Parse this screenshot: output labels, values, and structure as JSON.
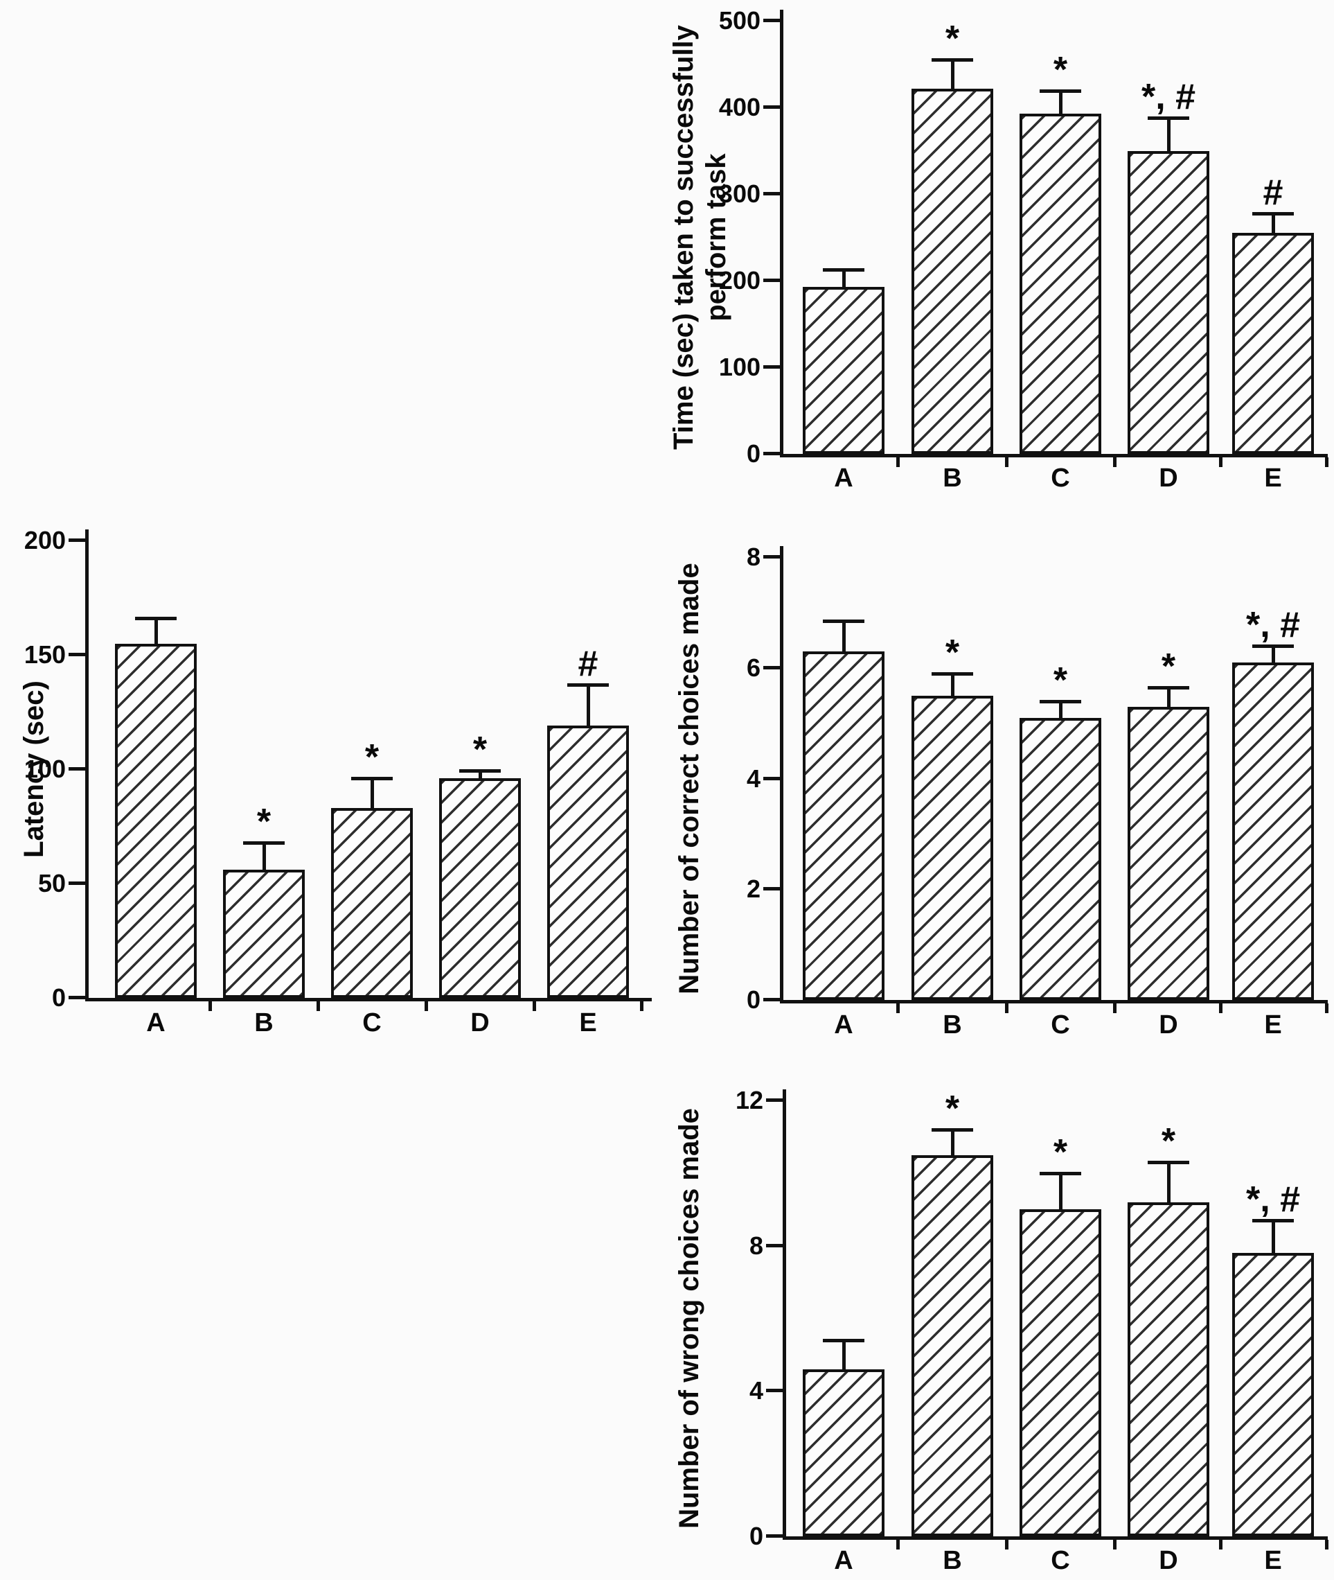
{
  "figure": {
    "description_visible_text_only": true,
    "panel_count": 4,
    "categories_shared": [
      "A",
      "B",
      "C",
      "D",
      "E"
    ]
  },
  "colors": {
    "background": "#fbfbfb",
    "axis": "#111111",
    "text": "#0a0a0a",
    "bar_hatch": "#2e2e2e",
    "bar_fill": "#fdfdfd"
  },
  "chart_data": [
    {
      "id": "time-to-perform-task",
      "type": "bar",
      "title": "",
      "xlabel": "",
      "ylabel": "Time (sec) taken to successfully perform task",
      "ylabel_lines": [
        "Time (sec) taken to successfully",
        "perform task"
      ],
      "categories": [
        "A",
        "B",
        "C",
        "D",
        "E"
      ],
      "values": [
        193,
        422,
        393,
        350,
        255
      ],
      "errors": [
        20,
        33,
        26,
        38,
        23
      ],
      "annotations": [
        "",
        "*",
        "*",
        "*, #",
        "#"
      ],
      "ylim": [
        0,
        500
      ],
      "yticks": [
        0,
        100,
        200,
        300,
        400,
        500
      ],
      "grid": false,
      "legend": null,
      "bar_style": "diagonal-hatch"
    },
    {
      "id": "latency",
      "type": "bar",
      "title": "",
      "xlabel": "",
      "ylabel": "Latency (sec)",
      "ylabel_lines": [
        "Latency (sec)"
      ],
      "categories": [
        "A",
        "B",
        "C",
        "D",
        "E"
      ],
      "values": [
        155,
        56,
        83,
        96,
        119
      ],
      "errors": [
        11,
        12,
        13,
        3.5,
        18
      ],
      "annotations": [
        "",
        "*",
        "*",
        "*",
        "#"
      ],
      "ylim": [
        0,
        200
      ],
      "yticks": [
        0,
        50,
        100,
        150,
        200
      ],
      "grid": false,
      "legend": null,
      "bar_style": "diagonal-hatch"
    },
    {
      "id": "correct-choices",
      "type": "bar",
      "title": "",
      "xlabel": "",
      "ylabel": "Number of correct choices made",
      "ylabel_lines": [
        "Number of correct choices made"
      ],
      "categories": [
        "A",
        "B",
        "C",
        "D",
        "E"
      ],
      "values": [
        6.3,
        5.5,
        5.1,
        5.3,
        6.1
      ],
      "errors": [
        0.55,
        0.4,
        0.3,
        0.35,
        0.3
      ],
      "annotations": [
        "",
        "*",
        "*",
        "*",
        "*, #"
      ],
      "ylim": [
        0,
        8
      ],
      "yticks": [
        0,
        2,
        4,
        6,
        8
      ],
      "grid": false,
      "legend": null,
      "bar_style": "diagonal-hatch"
    },
    {
      "id": "wrong-choices",
      "type": "bar",
      "title": "",
      "xlabel": "",
      "ylabel": "Number of wrong choices made",
      "ylabel_lines": [
        "Number of wrong choices made"
      ],
      "categories": [
        "A",
        "B",
        "C",
        "D",
        "E"
      ],
      "values": [
        4.6,
        10.5,
        9.0,
        9.2,
        7.8
      ],
      "errors": [
        0.8,
        0.7,
        1.0,
        1.1,
        0.9
      ],
      "annotations": [
        "",
        "*",
        "*",
        "*",
        "*, #"
      ],
      "ylim": [
        0,
        12
      ],
      "yticks": [
        0,
        4,
        8,
        12
      ],
      "grid": false,
      "legend": null,
      "bar_style": "diagonal-hatch"
    }
  ]
}
